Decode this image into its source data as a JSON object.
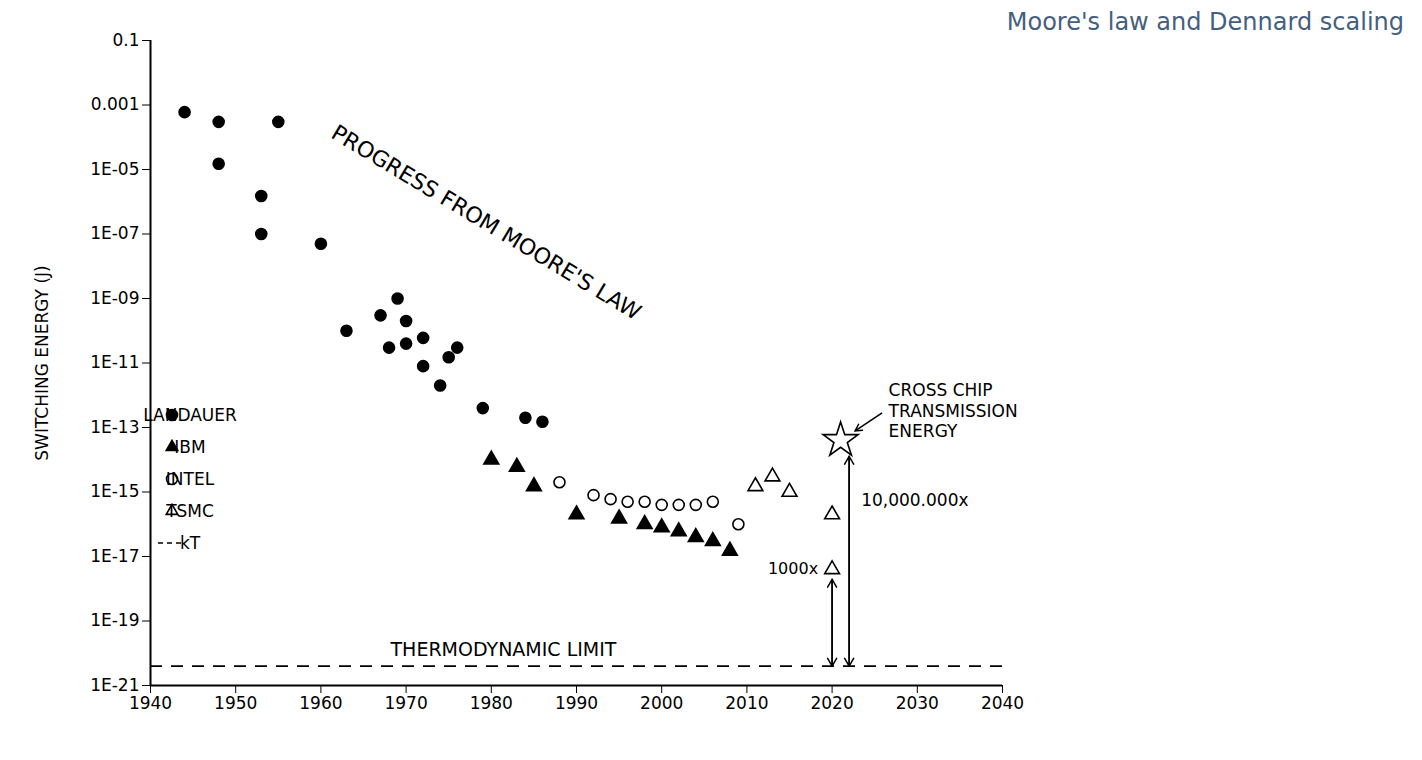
{
  "chart_data": {
    "type": "scatter",
    "title": "Moore's law and Dennard scaling",
    "ylabel": "SWITCHING ENERGY (J)",
    "log": "y",
    "grid": false,
    "legend": "bottom-left",
    "xlim": [
      1940,
      2040
    ],
    "xticks": [
      1940,
      1950,
      1960,
      1970,
      1980,
      1990,
      2000,
      2010,
      2020,
      2030,
      2040
    ],
    "ylim": [
      1e-21,
      0.1
    ],
    "yticks": [
      0.1,
      0.001,
      {
        "value": 1e-05,
        "label": "1E-05"
      },
      {
        "value": 1e-07,
        "label": "1E-07"
      },
      {
        "value": 1e-09,
        "label": "1E-09"
      },
      {
        "value": 1e-11,
        "label": "1E-11"
      },
      {
        "value": 1e-13,
        "label": "1E-13"
      },
      {
        "value": 1e-15,
        "label": "1E-15"
      },
      {
        "value": 1e-17,
        "label": "1E-17"
      },
      {
        "value": 1e-19,
        "label": "1E-19"
      },
      {
        "value": 1e-21,
        "label": "1E-21"
      }
    ],
    "series": [
      {
        "name": "LANDAUER",
        "marker": "circle",
        "color": "#000000",
        "x": [
          1944,
          1948,
          1955,
          1948,
          1953,
          1953,
          1960,
          1963,
          1967,
          1969,
          1970,
          1968,
          1970,
          1972,
          1972,
          1975,
          1976,
          1974,
          1979,
          1984,
          1986
        ],
        "y": [
          0.0006,
          0.0003,
          0.0003,
          1.5e-05,
          1.5e-06,
          1e-07,
          5e-08,
          1e-10,
          3e-10,
          1e-09,
          2e-10,
          3e-11,
          4e-11,
          6e-11,
          8e-12,
          1.5e-11,
          3e-11,
          2e-12,
          4e-13,
          2e-13,
          1.5e-13
        ]
      },
      {
        "name": "IBM",
        "marker": "triangle",
        "color": "#000000",
        "x": [
          1980,
          1983,
          1985,
          1990,
          1995,
          1998,
          2000,
          2002,
          2004,
          2006,
          2008
        ],
        "y": [
          1e-14,
          6e-15,
          1.5e-15,
          2e-16,
          1.5e-16,
          1e-16,
          8e-17,
          6e-17,
          4e-17,
          3e-17,
          1.5e-17
        ]
      },
      {
        "name": "INTEL",
        "marker": "circle-open",
        "color": "#000000",
        "x": [
          1988,
          1992,
          1994,
          1996,
          1998,
          2000,
          2002,
          2004,
          2006,
          2009
        ],
        "y": [
          2e-15,
          8e-16,
          6e-16,
          5e-16,
          5e-16,
          4e-16,
          4e-16,
          4e-16,
          5e-16,
          1e-16
        ]
      },
      {
        "name": "TSMC",
        "marker": "triangle-open",
        "color": "#000000",
        "x": [
          2011,
          2013,
          2015,
          2020,
          2020
        ],
        "y": [
          1.5e-15,
          3e-15,
          1e-15,
          2e-16,
          4e-18
        ]
      },
      {
        "name": "kT",
        "type": "hline",
        "line_style": "dashed",
        "color": "#000000",
        "y": 4e-21
      }
    ],
    "annotations": [
      {
        "text": "PROGRESS FROM MOORE'S LAW"
      },
      {
        "text": "THERMODYNAMIC LIMIT"
      },
      {
        "text": "CROSS CHIP TRANSMISSION ENERGY",
        "marker": "star",
        "x": 2021,
        "y": 4e-14
      },
      {
        "text": "1000x",
        "x": 2020,
        "y": [
          4e-21,
          4e-18
        ]
      },
      {
        "text": "10,000.000x",
        "x": 2022,
        "y": [
          4e-21,
          4e-14
        ]
      }
    ]
  }
}
